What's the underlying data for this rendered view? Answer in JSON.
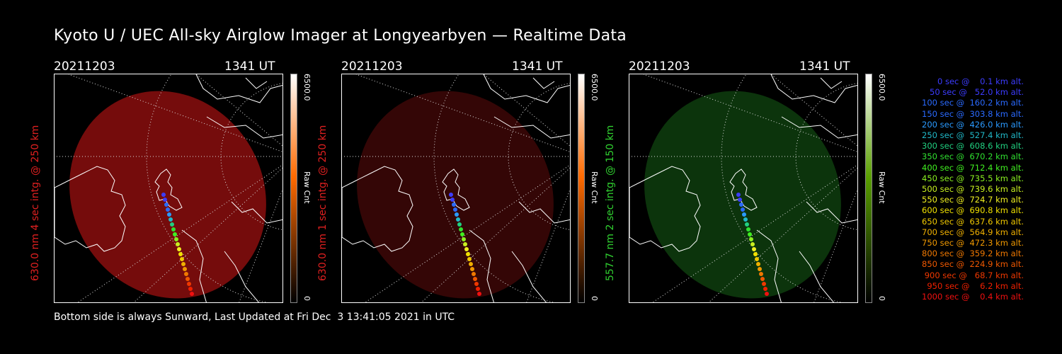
{
  "title": "Kyoto U / UEC All-sky Airglow Imager at Longyearbyen — Realtime Data",
  "footer": "Bottom side is always Sunward, Last Updated at Fri Dec  3 13:41:05 2021 in UTC",
  "panels": [
    {
      "date": "20211203",
      "time": "1341 UT",
      "label": "630.0 nm 4 sec intg. @ 250 km",
      "label_color": "#e02020",
      "scale_max": "6500.0",
      "scale_min": "0",
      "unit": "Raw Cnt",
      "tint": "#8a0e0e",
      "tint_opacity": 0.85,
      "bar_top": "#ffffff",
      "bar_mid": "#ff6a00",
      "bar_bot": "#000000"
    },
    {
      "date": "20211203",
      "time": "1341 UT",
      "label": "630.0 nm 1 sec intg. @ 250 km",
      "label_color": "#e02020",
      "scale_max": "6500.0",
      "scale_min": "0",
      "unit": "Raw Cnt",
      "tint": "#3a0707",
      "tint_opacity": 0.9,
      "bar_top": "#ffffff",
      "bar_mid": "#ff6a00",
      "bar_bot": "#000000"
    },
    {
      "date": "20211203",
      "time": "1341 UT",
      "label": "557.7 nm 2 sec intg. @ 150 km",
      "label_color": "#30d030",
      "scale_max": "6500.0",
      "scale_min": "0",
      "unit": "Raw Cnt",
      "tint": "#0d3a0d",
      "tint_opacity": 0.9,
      "bar_top": "#ffffff",
      "bar_mid": "#5aa000",
      "bar_bot": "#000000"
    }
  ],
  "legend": [
    {
      "text": "0 sec @    0.1 km alt.",
      "color": "#3c3cff"
    },
    {
      "text": "50 sec @   52.0 km alt.",
      "color": "#3c3cff"
    },
    {
      "text": "100 sec @  160.2 km alt.",
      "color": "#2a6aff"
    },
    {
      "text": "150 sec @  303.8 km alt.",
      "color": "#2a6aff"
    },
    {
      "text": "200 sec @  426.0 km alt.",
      "color": "#2a9aff"
    },
    {
      "text": "250 sec @  527.4 km alt.",
      "color": "#20b8c8"
    },
    {
      "text": "300 sec @  608.6 km alt.",
      "color": "#20d080"
    },
    {
      "text": "350 sec @  670.2 km alt.",
      "color": "#30e030"
    },
    {
      "text": "400 sec @  712.4 km alt.",
      "color": "#40f020"
    },
    {
      "text": "450 sec @  735.5 km alt.",
      "color": "#8af020"
    },
    {
      "text": "500 sec @  739.6 km alt.",
      "color": "#c8f020"
    },
    {
      "text": "550 sec @  724.7 km alt.",
      "color": "#f0f020"
    },
    {
      "text": "600 sec @  690.8 km alt.",
      "color": "#f0e000"
    },
    {
      "text": "650 sec @  637.6 km alt.",
      "color": "#f0c800"
    },
    {
      "text": "700 sec @  564.9 km alt.",
      "color": "#f0b000"
    },
    {
      "text": "750 sec @  472.3 km alt.",
      "color": "#f09800"
    },
    {
      "text": "800 sec @  359.2 km alt.",
      "color": "#f07800"
    },
    {
      "text": "850 sec @  224.9 km alt.",
      "color": "#f05800"
    },
    {
      "text": "900 sec @   68.7 km alt.",
      "color": "#f03800"
    },
    {
      "text": "950 sec @    6.2 km alt.",
      "color": "#f02000"
    },
    {
      "text": "1000 sec @    0.4 km alt.",
      "color": "#f01010"
    }
  ]
}
